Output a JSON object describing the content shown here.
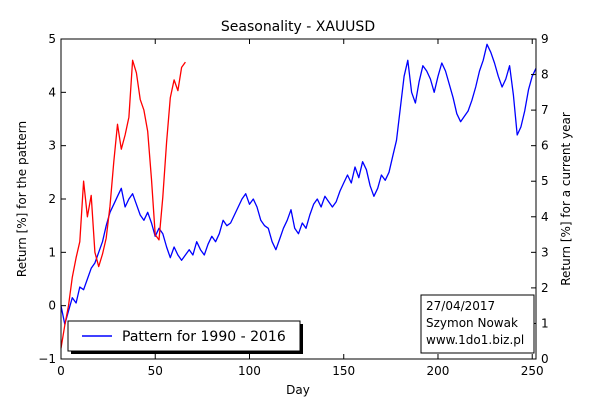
{
  "chart_data": {
    "type": "line",
    "title": "Seasonality - XAUUSD",
    "xlabel": "Day",
    "ylabel_left": "Return [%] for the pattern",
    "ylabel_right": "Return [%] for a current year",
    "xlim": [
      0,
      252
    ],
    "ylim_left": [
      -1,
      5
    ],
    "ylim_right": [
      0,
      9
    ],
    "x_ticks": [
      0,
      50,
      100,
      150,
      200,
      250
    ],
    "y_ticks_left": [
      -1,
      0,
      1,
      2,
      3,
      4,
      5
    ],
    "y_ticks_right": [
      0,
      1,
      2,
      3,
      4,
      5,
      6,
      7,
      8,
      9
    ],
    "grid": false,
    "legend": {
      "placement": "bottom-left",
      "label": "Pattern for 1990 - 2016"
    },
    "info_box": {
      "placement": "bottom-right",
      "lines": [
        "27/04/2017",
        "Szymon Nowak",
        "www.1do1.biz.pl"
      ]
    },
    "series": [
      {
        "name": "Pattern for 1990 - 2016",
        "axis": "left",
        "color": "#0000ff",
        "x": [
          0,
          2,
          4,
          6,
          8,
          10,
          12,
          14,
          16,
          18,
          20,
          22,
          24,
          26,
          28,
          30,
          32,
          34,
          36,
          38,
          40,
          42,
          44,
          46,
          48,
          50,
          52,
          54,
          56,
          58,
          60,
          62,
          64,
          66,
          68,
          70,
          72,
          74,
          76,
          78,
          80,
          82,
          84,
          86,
          88,
          90,
          92,
          94,
          96,
          98,
          100,
          102,
          104,
          106,
          108,
          110,
          112,
          114,
          116,
          118,
          120,
          122,
          124,
          126,
          128,
          130,
          132,
          134,
          136,
          138,
          140,
          142,
          144,
          146,
          148,
          150,
          152,
          154,
          156,
          158,
          160,
          162,
          164,
          166,
          168,
          170,
          172,
          174,
          176,
          178,
          180,
          182,
          184,
          186,
          188,
          190,
          192,
          194,
          196,
          198,
          200,
          202,
          204,
          206,
          208,
          210,
          212,
          214,
          216,
          218,
          220,
          222,
          224,
          226,
          228,
          230,
          232,
          234,
          236,
          238,
          240,
          242,
          244,
          246,
          248,
          250,
          252
        ],
        "y": [
          0.0,
          -0.35,
          -0.1,
          0.15,
          0.05,
          0.35,
          0.3,
          0.5,
          0.7,
          0.8,
          1.0,
          1.2,
          1.5,
          1.75,
          1.9,
          2.05,
          2.2,
          1.85,
          2.0,
          2.1,
          1.9,
          1.7,
          1.6,
          1.75,
          1.55,
          1.3,
          1.45,
          1.35,
          1.1,
          0.9,
          1.1,
          0.95,
          0.85,
          0.95,
          1.05,
          0.95,
          1.2,
          1.05,
          0.95,
          1.15,
          1.3,
          1.2,
          1.35,
          1.6,
          1.5,
          1.55,
          1.7,
          1.85,
          2.0,
          2.1,
          1.9,
          2.0,
          1.85,
          1.6,
          1.5,
          1.45,
          1.2,
          1.05,
          1.25,
          1.45,
          1.6,
          1.8,
          1.45,
          1.35,
          1.55,
          1.45,
          1.7,
          1.9,
          2.0,
          1.85,
          2.05,
          1.95,
          1.85,
          1.95,
          2.15,
          2.3,
          2.45,
          2.3,
          2.6,
          2.4,
          2.7,
          2.55,
          2.25,
          2.05,
          2.2,
          2.45,
          2.35,
          2.5,
          2.8,
          3.1,
          3.7,
          4.3,
          4.6,
          4.0,
          3.8,
          4.2,
          4.5,
          4.4,
          4.25,
          4.0,
          4.3,
          4.55,
          4.4,
          4.15,
          3.9,
          3.6,
          3.45,
          3.55,
          3.65,
          3.85,
          4.1,
          4.4,
          4.6,
          4.9,
          4.75,
          4.55,
          4.3,
          4.1,
          4.25,
          4.5,
          3.95,
          3.2,
          3.35,
          3.65,
          4.05,
          4.3,
          4.45
        ]
      },
      {
        "name": "",
        "axis": "right",
        "color": "#ff0000",
        "x": [
          0,
          2,
          4,
          6,
          8,
          10,
          12,
          14,
          16,
          18,
          20,
          22,
          24,
          26,
          28,
          30,
          32,
          34,
          36,
          38,
          40,
          42,
          44,
          46,
          48,
          50,
          52,
          54,
          56,
          58,
          60,
          62,
          64,
          66
        ],
        "y": [
          0.3,
          0.95,
          1.5,
          2.3,
          2.85,
          3.3,
          5.0,
          4.0,
          4.6,
          3.0,
          2.6,
          2.95,
          3.4,
          4.3,
          5.55,
          6.6,
          5.9,
          6.3,
          6.8,
          8.4,
          8.05,
          7.3,
          7.0,
          6.4,
          5.05,
          3.5,
          3.35,
          4.55,
          6.1,
          7.35,
          7.85,
          7.55,
          8.2,
          8.35
        ]
      }
    ]
  }
}
